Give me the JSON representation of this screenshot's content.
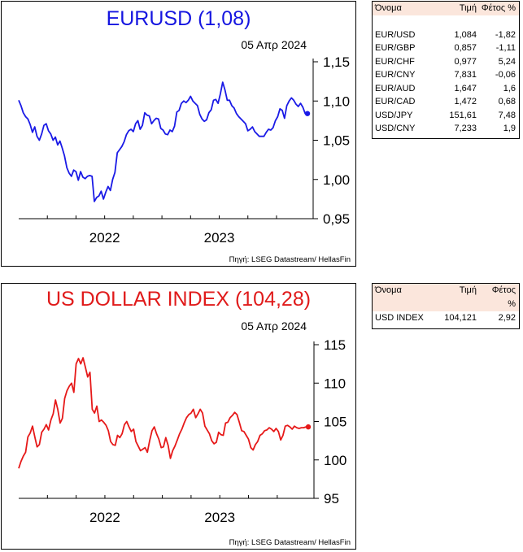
{
  "charts": [
    {
      "title": "EURUSD (1,08)",
      "date": "05 Απρ 2024",
      "source": "Πηγή: LSEG Datastream/ HellasFin",
      "color": "#1a1ae6"
    },
    {
      "title": "US DOLLAR INDEX (104,28)",
      "date": "05 Απρ 2024",
      "source": "Πηγή: LSEG Datastream/ HellasFin",
      "color": "#e61919"
    }
  ],
  "table1": {
    "headers": [
      "Όνομα",
      "Τιμή",
      "Φέτος %"
    ],
    "rows": [
      [
        "EUR/USD",
        "1,084",
        "-1,82"
      ],
      [
        "EUR/GBP",
        "0,857",
        "-1,11"
      ],
      [
        "EUR/CHF",
        "0,977",
        "5,24"
      ],
      [
        "EUR/CNY",
        "7,831",
        "-0,06"
      ],
      [
        "EUR/AUD",
        "1,647",
        "1,6"
      ],
      [
        "EUR/CAD",
        "1,472",
        "0,68"
      ],
      [
        "USD/JPY",
        "151,61",
        "7,48"
      ],
      [
        "USD/CNY",
        "7,233",
        "1,9"
      ]
    ]
  },
  "table2": {
    "headers": [
      "Όνομα",
      "Τιμή",
      "Φέτος"
    ],
    "header_sub": "%",
    "rows": [
      [
        "USD INDEX",
        "104,121",
        "2,92"
      ]
    ]
  },
  "chart_data": [
    {
      "type": "line",
      "title": "EURUSD (1,08)",
      "x_tick_labels": [
        "2022",
        "2023"
      ],
      "ylim": [
        0.95,
        1.15
      ],
      "y_ticks": [
        0.95,
        1.0,
        1.05,
        1.1,
        1.15
      ],
      "y_tick_labels": [
        "0,95",
        "1,00",
        "1,05",
        "1,10",
        "1,15"
      ],
      "x_range": [
        2021.75,
        2024.27
      ],
      "series": [
        {
          "x": [
            2021.75,
            2021.77,
            2021.79,
            2021.81,
            2021.83,
            2021.85,
            2021.87,
            2021.89,
            2021.91,
            2021.93,
            2021.95,
            2021.97,
            2021.99,
            2022.01,
            2022.03,
            2022.05,
            2022.07,
            2022.09,
            2022.11,
            2022.13,
            2022.15,
            2022.17,
            2022.19,
            2022.21,
            2022.23,
            2022.25,
            2022.27,
            2022.29,
            2022.31,
            2022.33,
            2022.35,
            2022.37,
            2022.39,
            2022.41,
            2022.43,
            2022.45,
            2022.47,
            2022.49,
            2022.51,
            2022.53,
            2022.55,
            2022.57,
            2022.59,
            2022.61,
            2022.63,
            2022.65,
            2022.67,
            2022.69,
            2022.71,
            2022.73,
            2022.75,
            2022.77,
            2022.79,
            2022.81,
            2022.83,
            2022.85,
            2022.87,
            2022.89,
            2022.91,
            2022.93,
            2022.95,
            2022.97,
            2022.99,
            2023.01,
            2023.03,
            2023.05,
            2023.07,
            2023.09,
            2023.11,
            2023.13,
            2023.15,
            2023.17,
            2023.19,
            2023.21,
            2023.23,
            2023.25,
            2023.27,
            2023.29,
            2023.31,
            2023.33,
            2023.35,
            2023.37,
            2023.39,
            2023.41,
            2023.43,
            2023.45,
            2023.47,
            2023.49,
            2023.51,
            2023.53,
            2023.55,
            2023.57,
            2023.59,
            2023.61,
            2023.63,
            2023.65,
            2023.67,
            2023.69,
            2023.71,
            2023.73,
            2023.75,
            2023.77,
            2023.79,
            2023.81,
            2023.83,
            2023.85,
            2023.87,
            2023.89,
            2023.91,
            2023.93,
            2023.95,
            2023.97,
            2023.99,
            2024.01,
            2024.03,
            2024.05,
            2024.07,
            2024.09,
            2024.11,
            2024.13,
            2024.15,
            2024.17,
            2024.19,
            2024.21,
            2024.23,
            2024.25,
            2024.27
          ],
          "y": [
            1.101,
            1.094,
            1.085,
            1.08,
            1.077,
            1.07,
            1.06,
            1.067,
            1.055,
            1.05,
            1.058,
            1.069,
            1.071,
            1.062,
            1.058,
            1.05,
            1.054,
            1.044,
            1.049,
            1.04,
            1.03,
            1.015,
            1.008,
            1.004,
            1.012,
            1.01,
            0.999,
            1.01,
            1.003,
            1.001,
            1.004,
            1.005,
            1.004,
            0.972,
            0.977,
            0.979,
            0.985,
            0.975,
            0.984,
            0.991,
            0.986,
            1.0,
            1.009,
            1.034,
            1.038,
            1.042,
            1.048,
            1.057,
            1.062,
            1.064,
            1.061,
            1.071,
            1.075,
            1.064,
            1.069,
            1.085,
            1.082,
            1.081,
            1.071,
            1.075,
            1.078,
            1.077,
            1.065,
            1.063,
            1.058,
            1.057,
            1.063,
            1.061,
            1.068,
            1.086,
            1.088,
            1.097,
            1.1,
            1.098,
            1.101,
            1.106,
            1.1,
            1.097,
            1.094,
            1.083,
            1.077,
            1.074,
            1.076,
            1.085,
            1.089,
            1.101,
            1.102,
            1.097,
            1.109,
            1.124,
            1.114,
            1.101,
            1.101,
            1.094,
            1.091,
            1.084,
            1.08,
            1.077,
            1.074,
            1.071,
            1.062,
            1.064,
            1.067,
            1.061,
            1.058,
            1.055,
            1.055,
            1.055,
            1.06,
            1.064,
            1.063,
            1.066,
            1.075,
            1.08,
            1.09,
            1.088,
            1.078,
            1.094,
            1.1,
            1.104,
            1.101,
            1.096,
            1.093,
            1.097,
            1.092,
            1.084,
            1.084
          ]
        }
      ]
    },
    {
      "type": "line",
      "title": "US DOLLAR INDEX (104,28)",
      "x_tick_labels": [
        "2022",
        "2023"
      ],
      "ylim": [
        95,
        115
      ],
      "y_ticks": [
        95,
        100,
        105,
        110,
        115
      ],
      "y_tick_labels": [
        "95",
        "100",
        "105",
        "110",
        "115"
      ],
      "x_range": [
        2021.75,
        2024.27
      ],
      "series": [
        {
          "x": [
            2021.75,
            2021.77,
            2021.79,
            2021.81,
            2021.83,
            2021.85,
            2021.87,
            2021.89,
            2021.91,
            2021.93,
            2021.95,
            2021.97,
            2021.99,
            2022.01,
            2022.03,
            2022.05,
            2022.07,
            2022.09,
            2022.11,
            2022.13,
            2022.15,
            2022.17,
            2022.19,
            2022.21,
            2022.23,
            2022.25,
            2022.27,
            2022.29,
            2022.31,
            2022.33,
            2022.35,
            2022.37,
            2022.39,
            2022.41,
            2022.43,
            2022.45,
            2022.47,
            2022.49,
            2022.51,
            2022.53,
            2022.55,
            2022.57,
            2022.59,
            2022.61,
            2022.63,
            2022.65,
            2022.67,
            2022.69,
            2022.71,
            2022.73,
            2022.75,
            2022.77,
            2022.79,
            2022.81,
            2022.83,
            2022.85,
            2022.87,
            2022.89,
            2022.91,
            2022.93,
            2022.95,
            2022.97,
            2022.99,
            2023.01,
            2023.03,
            2023.05,
            2023.07,
            2023.09,
            2023.11,
            2023.13,
            2023.15,
            2023.17,
            2023.19,
            2023.21,
            2023.23,
            2023.25,
            2023.27,
            2023.29,
            2023.31,
            2023.33,
            2023.35,
            2023.37,
            2023.39,
            2023.41,
            2023.43,
            2023.45,
            2023.47,
            2023.49,
            2023.51,
            2023.53,
            2023.55,
            2023.57,
            2023.59,
            2023.61,
            2023.63,
            2023.65,
            2023.67,
            2023.69,
            2023.71,
            2023.73,
            2023.75,
            2023.77,
            2023.79,
            2023.81,
            2023.83,
            2023.85,
            2023.87,
            2023.89,
            2023.91,
            2023.93,
            2023.95,
            2023.97,
            2023.99,
            2024.01,
            2024.03,
            2024.05,
            2024.07,
            2024.09,
            2024.11,
            2024.13,
            2024.15,
            2024.17,
            2024.19,
            2024.21,
            2024.23,
            2024.25,
            2024.27
          ],
          "y": [
            98.9,
            99.8,
            100.5,
            101.0,
            103.0,
            103.5,
            104.4,
            103.0,
            101.7,
            102.0,
            103.6,
            104.0,
            104.6,
            103.9,
            105.2,
            106.0,
            107.8,
            106.6,
            104.8,
            105.4,
            108.0,
            109.0,
            109.6,
            110.0,
            108.8,
            112.5,
            113.2,
            112.5,
            113.3,
            112.1,
            110.8,
            111.4,
            106.6,
            106.1,
            107.0,
            105.0,
            105.2,
            104.9,
            104.5,
            103.8,
            102.4,
            102.0,
            101.9,
            103.2,
            102.9,
            103.4,
            104.6,
            105.0,
            104.3,
            103.7,
            104.0,
            102.4,
            101.8,
            101.2,
            101.4,
            101.6,
            101.0,
            102.5,
            103.8,
            104.3,
            103.4,
            102.7,
            101.6,
            101.7,
            102.9,
            101.9,
            100.2,
            101.2,
            101.8,
            102.6,
            103.4,
            104.0,
            104.8,
            105.5,
            105.9,
            106.1,
            106.6,
            105.5,
            106.0,
            106.6,
            106.1,
            104.4,
            103.9,
            103.4,
            102.5,
            102.1,
            102.3,
            103.6,
            103.3,
            103.2,
            104.8,
            104.9,
            105.5,
            105.8,
            106.2,
            105.9,
            104.9,
            103.8,
            103.7,
            103.2,
            102.7,
            101.6,
            101.3,
            102.0,
            102.4,
            103.2,
            103.4,
            103.8,
            103.9,
            104.2,
            104.0,
            103.7,
            104.1,
            103.7,
            102.6,
            103.2,
            104.4,
            104.5,
            104.3,
            104.0,
            104.4,
            104.2,
            104.1,
            104.2,
            104.2,
            104.3,
            104.3
          ]
        }
      ]
    }
  ]
}
